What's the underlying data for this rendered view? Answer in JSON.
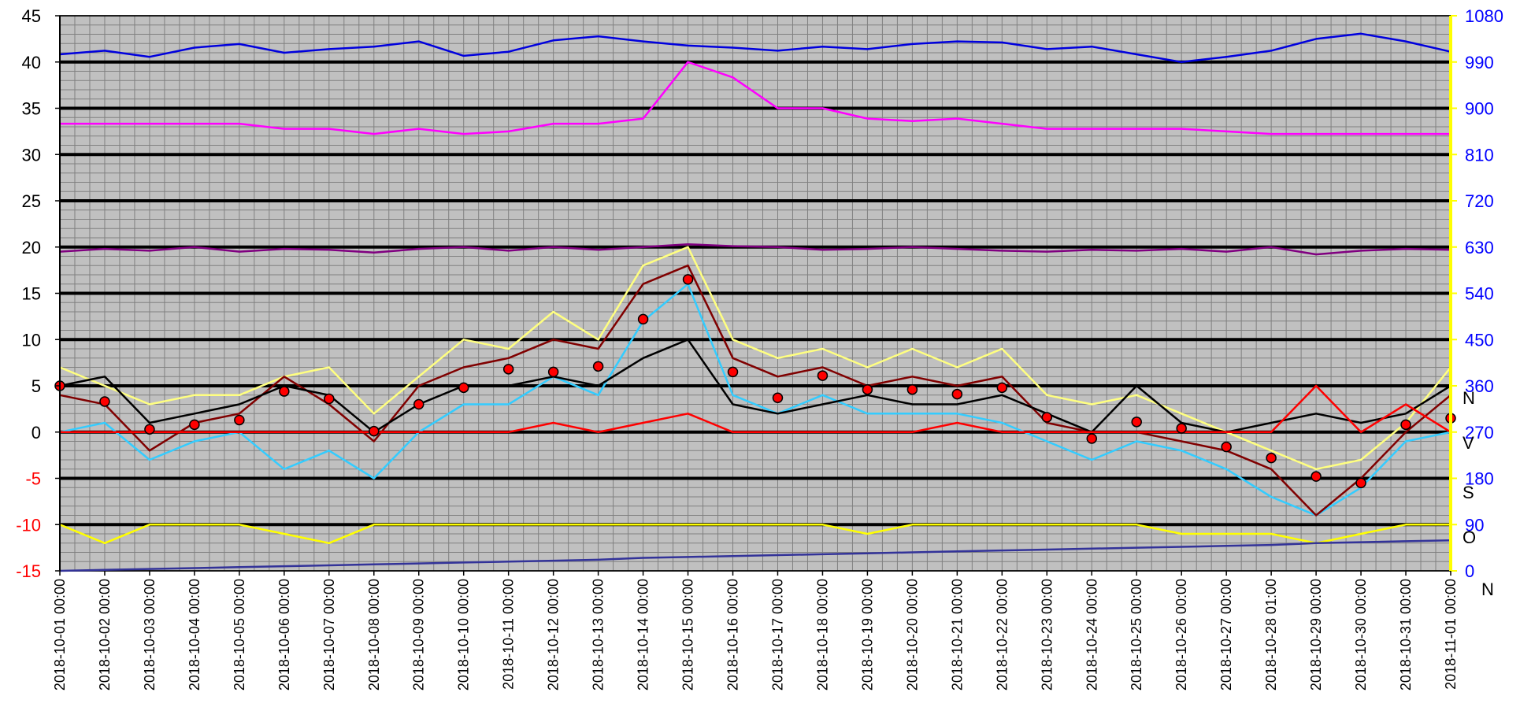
{
  "colors": {
    "plot_bg": "#c0c0c0",
    "grid_minor": "#808080",
    "grid_major": "#000000",
    "left_axis_positive": "#000000",
    "left_axis_negative": "#ff0000",
    "right_axis_text": "#0000ff",
    "right_axis_line": "#ffff00"
  },
  "chart_data": {
    "type": "line",
    "title": "",
    "xlabel": "",
    "ylabel_left": "",
    "ylabel_right": "",
    "ylim_left": [
      -15,
      45
    ],
    "ylim_right": [
      0,
      1080
    ],
    "grid": true,
    "legend": "none",
    "yticks_left": [
      "45",
      "40",
      "35",
      "30",
      "25",
      "20",
      "15",
      "10",
      "5",
      "0",
      "-5",
      "-10",
      "-15"
    ],
    "yticks_right": [
      "1080",
      "990",
      "900",
      "810",
      "720",
      "630",
      "540",
      "450",
      "360",
      "270",
      "180",
      "90",
      "0"
    ],
    "xticks": [
      "2018-10-01 00:00",
      "2018-10-02 00:00",
      "2018-10-03 00:00",
      "2018-10-04 00:00",
      "2018-10-05 00:00",
      "2018-10-06 00:00",
      "2018-10-07 00:00",
      "2018-10-08 00:00",
      "2018-10-09 00:00",
      "2018-10-10 00:00",
      "2018-10-11 00:00",
      "2018-10-12 00:00",
      "2018-10-13 00:00",
      "2018-10-14 00:00",
      "2018-10-15 00:00",
      "2018-10-16 00:00",
      "2018-10-17 00:00",
      "2018-10-18 00:00",
      "2018-10-19 00:00",
      "2018-10-20 00:00",
      "2018-10-21 00:00",
      "2018-10-22 00:00",
      "2018-10-23 00:00",
      "2018-10-24 00:00",
      "2018-10-25 00:00",
      "2018-10-26 00:00",
      "2018-10-27 00:00",
      "2018-10-28 01:00",
      "2018-10-29 00:00",
      "2018-10-30 00:00",
      "2018-10-31 00:00",
      "2018-11-01 00:00"
    ],
    "right_side_letters": [
      "N",
      "V",
      "S",
      "O",
      "N"
    ],
    "series": [
      {
        "color": "#0000dd",
        "axis": "right",
        "values": [
          1005,
          1012,
          1000,
          1018,
          1025,
          1008,
          1015,
          1020,
          1030,
          1002,
          1010,
          1032,
          1040,
          1030,
          1022,
          1018,
          1012,
          1020,
          1015,
          1025,
          1030,
          1028,
          1015,
          1020,
          1005,
          990,
          1000,
          1012,
          1035,
          1045,
          1030,
          1010
        ]
      },
      {
        "color": "#ff00ff",
        "axis": "right",
        "values": [
          870,
          870,
          870,
          870,
          870,
          860,
          860,
          850,
          860,
          850,
          855,
          870,
          870,
          880,
          990,
          960,
          900,
          900,
          880,
          875,
          880,
          870,
          860,
          860,
          860,
          860,
          855,
          850,
          850,
          850,
          850,
          850
        ]
      },
      {
        "color": "#800080",
        "axis": "left",
        "values": [
          19.5,
          19.8,
          19.6,
          20,
          19.5,
          19.8,
          19.7,
          19.4,
          19.8,
          20,
          19.6,
          20,
          19.7,
          20,
          20.3,
          20.1,
          20,
          19.7,
          19.8,
          20,
          19.8,
          19.6,
          19.5,
          19.7,
          19.6,
          19.8,
          19.5,
          20,
          19.2,
          19.6,
          19.8,
          19.7
        ]
      },
      {
        "color": "#ffff80",
        "axis": "left",
        "values": [
          7,
          5,
          3,
          4,
          4,
          6,
          7,
          2,
          6,
          10,
          9,
          13,
          10,
          18,
          20,
          10,
          8,
          9,
          7,
          9,
          7,
          9,
          4,
          3,
          4,
          2,
          0,
          -2,
          -4,
          -3,
          1,
          7
        ]
      },
      {
        "color": "#33ccff",
        "axis": "left",
        "values": [
          0,
          1,
          -3,
          -1,
          0,
          -4,
          -2,
          -5,
          0,
          3,
          3,
          6,
          4,
          12,
          16,
          4,
          2,
          4,
          2,
          2,
          2,
          1,
          -1,
          -3,
          -1,
          -2,
          -4,
          -7,
          -9,
          -6,
          -1,
          0
        ]
      },
      {
        "color": "#800000",
        "axis": "left",
        "values": [
          4,
          3,
          -2,
          1,
          2,
          6,
          3,
          -1,
          5,
          7,
          8,
          10,
          9,
          16,
          18,
          8,
          6,
          7,
          5,
          6,
          5,
          6,
          1,
          0,
          0,
          -1,
          -2,
          -4,
          -9,
          -5,
          0,
          4
        ]
      },
      {
        "color": "#000000",
        "axis": "left",
        "values": [
          5,
          6,
          1,
          2,
          3,
          5,
          4,
          0,
          3,
          5,
          5,
          6,
          5,
          8,
          10,
          3,
          2,
          3,
          4,
          3,
          3,
          4,
          2,
          0,
          5,
          1,
          0,
          1,
          2,
          1,
          2,
          5
        ]
      },
      {
        "color": "#ff0000",
        "axis": "left",
        "values": [
          0,
          0,
          0,
          0,
          0,
          0,
          0,
          0,
          0,
          0,
          0,
          1,
          0,
          1,
          2,
          0,
          0,
          0,
          0,
          0,
          1,
          0,
          0,
          0,
          0,
          0,
          0,
          0,
          5,
          0,
          3,
          0
        ]
      },
      {
        "color": "#ffff00",
        "axis": "left",
        "values": [
          -10,
          -12,
          -10,
          -10,
          -10,
          -11,
          -12,
          -10,
          -10,
          -10,
          -10,
          -10,
          -10,
          -10,
          -10,
          -10,
          -10,
          -10,
          -11,
          -10,
          -10,
          -10,
          -10,
          -10,
          -10,
          -11,
          -11,
          -11,
          -12,
          -11,
          -10,
          -10
        ]
      },
      {
        "color": "#333399",
        "axis": "left",
        "values": [
          -15,
          -14.9,
          -14.8,
          -14.7,
          -14.6,
          -14.5,
          -14.4,
          -14.3,
          -14.2,
          -14.1,
          -14.0,
          -13.9,
          -13.8,
          -13.6,
          -13.5,
          -13.4,
          -13.3,
          -13.2,
          -13.1,
          -13.0,
          -12.9,
          -12.8,
          -12.7,
          -12.6,
          -12.5,
          -12.4,
          -12.3,
          -12.2,
          -12.0,
          -11.9,
          -11.8,
          -11.7
        ]
      }
    ],
    "markers": [
      {
        "x": 0,
        "y": 5
      },
      {
        "x": 1,
        "y": 3.3
      },
      {
        "x": 2,
        "y": 0.3
      },
      {
        "x": 3,
        "y": 0.8
      },
      {
        "x": 4,
        "y": 1.3
      },
      {
        "x": 5,
        "y": 4.4
      },
      {
        "x": 6,
        "y": 3.6
      },
      {
        "x": 7,
        "y": 0.1
      },
      {
        "x": 8,
        "y": 3
      },
      {
        "x": 9,
        "y": 4.8
      },
      {
        "x": 10,
        "y": 6.8
      },
      {
        "x": 11,
        "y": 6.5
      },
      {
        "x": 12,
        "y": 7.1
      },
      {
        "x": 13,
        "y": 12.2
      },
      {
        "x": 14,
        "y": 16.5
      },
      {
        "x": 15,
        "y": 6.5
      },
      {
        "x": 16,
        "y": 3.7
      },
      {
        "x": 17,
        "y": 6.1
      },
      {
        "x": 18,
        "y": 4.6
      },
      {
        "x": 19,
        "y": 4.6
      },
      {
        "x": 20,
        "y": 4.1
      },
      {
        "x": 21,
        "y": 4.8
      },
      {
        "x": 22,
        "y": 1.6
      },
      {
        "x": 23,
        "y": -0.7
      },
      {
        "x": 24,
        "y": 1.1
      },
      {
        "x": 25,
        "y": 0.4
      },
      {
        "x": 26,
        "y": -1.6
      },
      {
        "x": 27,
        "y": -2.8
      },
      {
        "x": 28,
        "y": -4.8
      },
      {
        "x": 29,
        "y": -5.5
      },
      {
        "x": 30,
        "y": 0.8
      },
      {
        "x": 31,
        "y": 1.5
      }
    ],
    "marker_color": "#ff0000"
  }
}
